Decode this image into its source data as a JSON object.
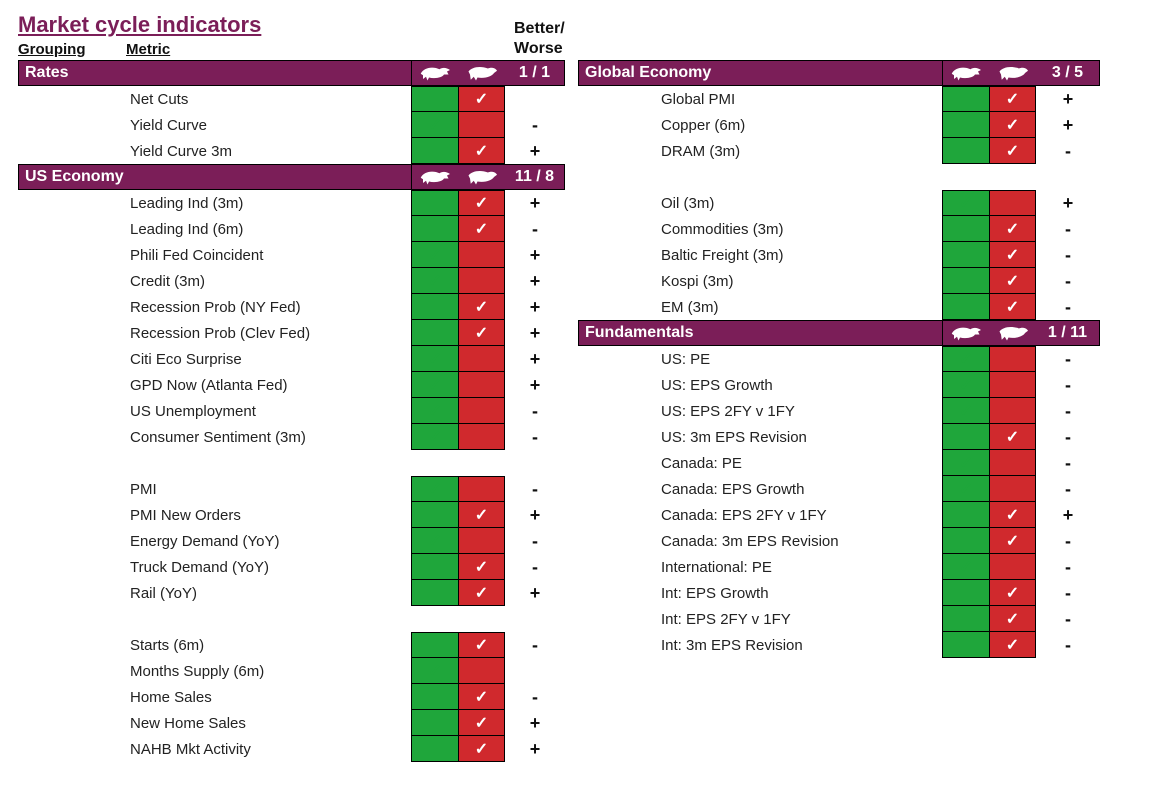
{
  "colors": {
    "header_bg": "#7b1e58",
    "green": "#1fa63b",
    "red": "#d0292d",
    "border": "#000000",
    "text": "#222222",
    "title": "#7b1e58"
  },
  "fonts": {
    "title_size": 22,
    "header_size": 16,
    "row_size": 15
  },
  "title": "Market cycle indicators",
  "labels": {
    "grouping": "Grouping",
    "metric": "Metric",
    "better": "Better/",
    "worse": "Worse"
  },
  "icons": {
    "bull": "bull",
    "bear": "bear"
  },
  "left_sections": [
    {
      "name": "Rates",
      "score": "1 / 1",
      "groups": [
        [
          {
            "label": "Net Cuts",
            "bull": false,
            "bear": true,
            "bw": ""
          },
          {
            "label": "Yield Curve",
            "bull": true,
            "bear": false,
            "bw": "-"
          },
          {
            "label": "Yield Curve 3m",
            "bull": false,
            "bear": true,
            "bw": "+"
          }
        ]
      ]
    },
    {
      "name": "US Economy",
      "score": "11 / 8",
      "groups": [
        [
          {
            "label": "Leading Ind (3m)",
            "bull": false,
            "bear": true,
            "bw": "+"
          },
          {
            "label": "Leading Ind (6m)",
            "bull": false,
            "bear": true,
            "bw": "-"
          },
          {
            "label": "Phili Fed Coincident",
            "bull": true,
            "bear": false,
            "bw": "+"
          },
          {
            "label": "Credit (3m)",
            "bull": true,
            "bear": false,
            "bw": "+"
          },
          {
            "label": "Recession Prob (NY Fed)",
            "bull": false,
            "bear": true,
            "bw": "+"
          },
          {
            "label": "Recession Prob (Clev Fed)",
            "bull": false,
            "bear": true,
            "bw": "+"
          },
          {
            "label": "Citi Eco Surprise",
            "bull": true,
            "bear": false,
            "bw": "+"
          },
          {
            "label": "GPD Now (Atlanta Fed)",
            "bull": true,
            "bear": false,
            "bw": "+"
          },
          {
            "label": "US Unemployment",
            "bull": true,
            "bear": false,
            "bw": "-"
          },
          {
            "label": "Consumer Sentiment (3m)",
            "bull": true,
            "bear": false,
            "bw": "-"
          }
        ],
        [
          {
            "label": "PMI",
            "bull": true,
            "bear": false,
            "bw": "-"
          },
          {
            "label": "PMI New Orders",
            "bull": false,
            "bear": true,
            "bw": "+"
          },
          {
            "label": "Energy Demand (YoY)",
            "bull": true,
            "bear": false,
            "bw": "-"
          },
          {
            "label": "Truck Demand (YoY)",
            "bull": false,
            "bear": true,
            "bw": "-"
          },
          {
            "label": "Rail (YoY)",
            "bull": false,
            "bear": true,
            "bw": "+"
          }
        ],
        [
          {
            "label": "Starts (6m)",
            "bull": false,
            "bear": true,
            "bw": "-"
          },
          {
            "label": "Months Supply (6m)",
            "bull": true,
            "bear": false,
            "bw": ""
          },
          {
            "label": "Home Sales",
            "bull": false,
            "bear": true,
            "bw": "-"
          },
          {
            "label": "New Home Sales",
            "bull": false,
            "bear": true,
            "bw": "+"
          },
          {
            "label": "NAHB Mkt Activity",
            "bull": false,
            "bear": true,
            "bw": "+"
          }
        ]
      ]
    }
  ],
  "right_sections": [
    {
      "name": "Global Economy",
      "score": "3 / 5",
      "groups": [
        [
          {
            "label": "Global PMI",
            "bull": false,
            "bear": true,
            "bw": "+"
          },
          {
            "label": "Copper (6m)",
            "bull": false,
            "bear": true,
            "bw": "+"
          },
          {
            "label": "DRAM (3m)",
            "bull": false,
            "bear": true,
            "bw": "-"
          }
        ],
        [
          {
            "label": "Oil (3m)",
            "bull": true,
            "bear": false,
            "bw": "+"
          },
          {
            "label": "Commodities (3m)",
            "bull": false,
            "bear": true,
            "bw": "-"
          },
          {
            "label": "Baltic Freight (3m)",
            "bull": false,
            "bear": true,
            "bw": "-"
          },
          {
            "label": "Kospi (3m)",
            "bull": false,
            "bear": true,
            "bw": "-"
          },
          {
            "label": "EM (3m)",
            "bull": false,
            "bear": true,
            "bw": "-"
          }
        ]
      ]
    },
    {
      "name": "Fundamentals",
      "score": "1 / 11",
      "groups": [
        [
          {
            "label": "US: PE",
            "bull": true,
            "bear": false,
            "bw": "-"
          },
          {
            "label": "US: EPS Growth",
            "bull": true,
            "bear": false,
            "bw": "-"
          },
          {
            "label": "US: EPS 2FY v 1FY",
            "bull": true,
            "bear": false,
            "bw": "-"
          },
          {
            "label": "US: 3m EPS Revision",
            "bull": false,
            "bear": true,
            "bw": "-"
          },
          {
            "label": "Canada: PE",
            "bull": true,
            "bear": false,
            "bw": "-"
          },
          {
            "label": "Canada: EPS Growth",
            "bull": true,
            "bear": false,
            "bw": "-"
          },
          {
            "label": "Canada: EPS 2FY v 1FY",
            "bull": false,
            "bear": true,
            "bw": "+"
          },
          {
            "label": "Canada: 3m EPS Revision",
            "bull": false,
            "bear": true,
            "bw": "-"
          },
          {
            "label": "International: PE",
            "bull": true,
            "bear": false,
            "bw": "-"
          },
          {
            "label": "Int: EPS Growth",
            "bull": false,
            "bear": true,
            "bw": "-"
          },
          {
            "label": "Int: EPS 2FY v 1FY",
            "bull": false,
            "bear": true,
            "bw": "-"
          },
          {
            "label": "Int: 3m EPS Revision",
            "bull": false,
            "bear": true,
            "bw": "-"
          }
        ]
      ]
    }
  ]
}
